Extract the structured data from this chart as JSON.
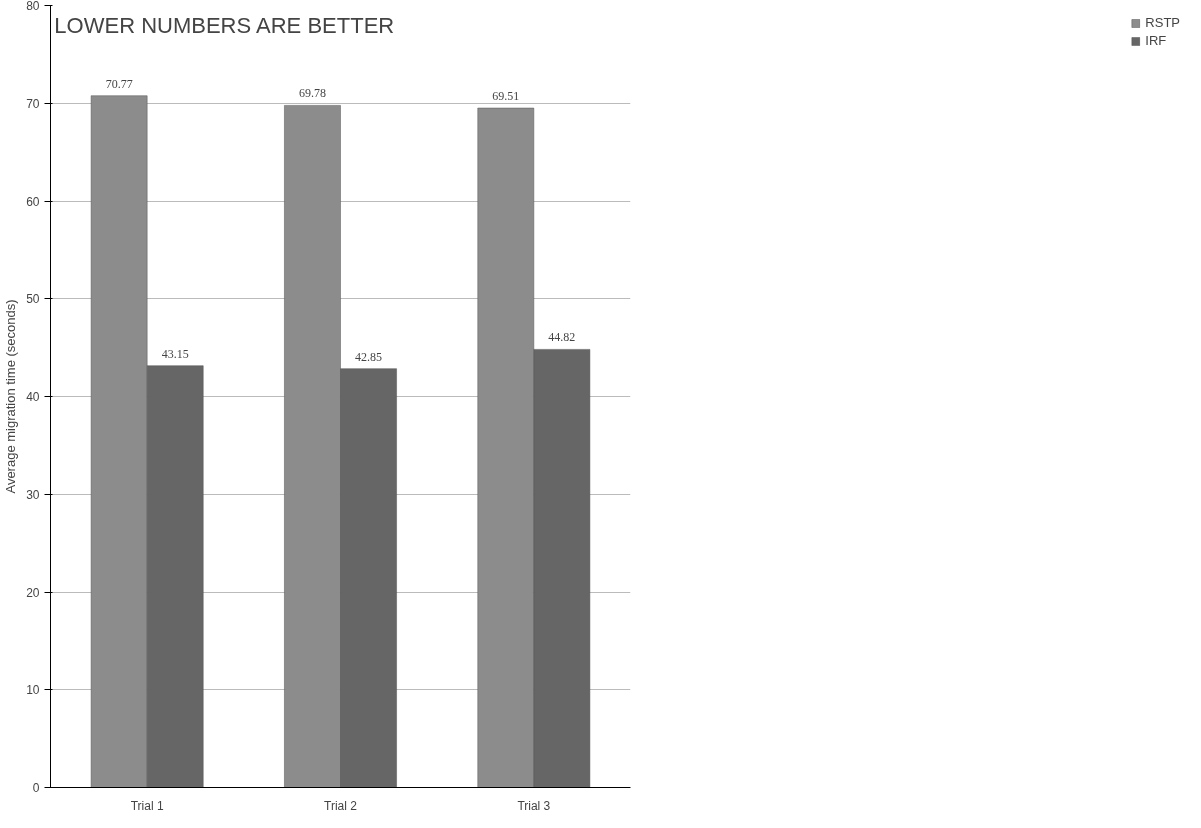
{
  "chart_data": {
    "type": "bar",
    "ylabel": "Average migration time (seconds)",
    "categories": [
      "Trial 1",
      "Trial 2",
      "Trial 3"
    ],
    "series": [
      {
        "name": "RSTP",
        "color": "#8c8c8c",
        "values": [
          70.77,
          69.78,
          69.51
        ]
      },
      {
        "name": "IRF",
        "color": "#666666",
        "values": [
          43.15,
          42.85,
          44.82
        ]
      }
    ],
    "ylim": [
      0,
      80
    ],
    "yticks": [
      0,
      10,
      20,
      30,
      40,
      50,
      60,
      70,
      80
    ],
    "grid": "y",
    "legend": "right",
    "data_labels": true,
    "annotations": [
      "LOWER NUMBERS ARE BETTER"
    ]
  }
}
